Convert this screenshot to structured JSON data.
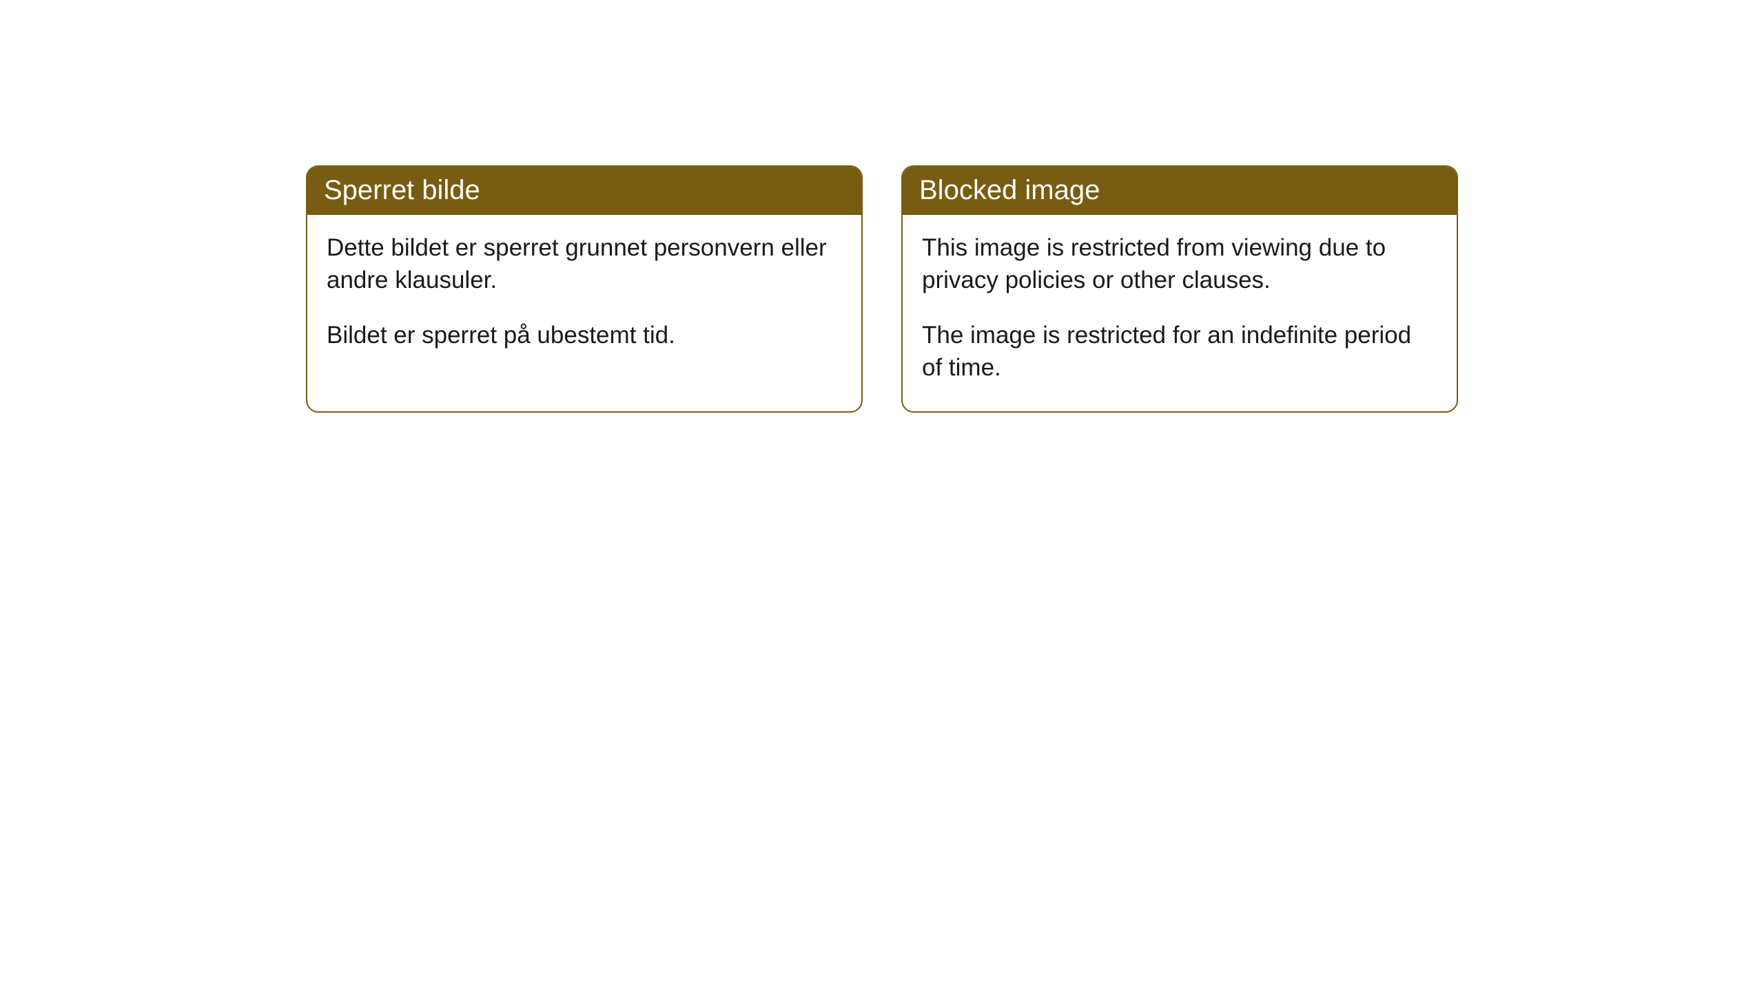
{
  "cards": [
    {
      "title": "Sperret bilde",
      "paragraph1": "Dette bildet er sperret grunnet personvern eller andre klausuler.",
      "paragraph2": "Bildet er sperret på ubestemt tid."
    },
    {
      "title": "Blocked image",
      "paragraph1": "This image is restricted from viewing due to privacy policies or other clauses.",
      "paragraph2": "The image is restricted for an indefinite period of time."
    }
  ],
  "style": {
    "header_bg_color": "#785c11",
    "header_text_color": "#ffffff",
    "border_color": "#785c11",
    "body_bg_color": "#ffffff",
    "body_text_color": "#1a1a1a",
    "border_radius": 18,
    "header_fontsize": 40,
    "body_fontsize": 35
  }
}
